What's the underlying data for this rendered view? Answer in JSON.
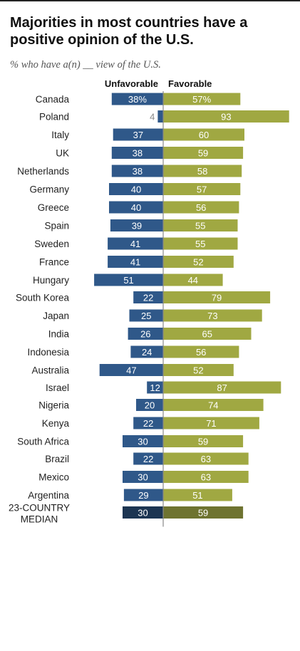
{
  "title": "Majorities in most countries have a positive opinion of the U.S.",
  "subtitle": "% who have a(n) __ view of the U.S.",
  "colors": {
    "unfavorable": "#2f5889",
    "favorable": "#a0a842",
    "median_unfavorable": "#1c3552",
    "median_favorable": "#6e7330"
  },
  "chart_data": {
    "type": "bar",
    "orientation": "horizontal-diverging",
    "series": [
      {
        "name": "Unfavorable",
        "values": [
          38,
          4,
          37,
          38,
          38,
          40,
          40,
          39,
          41,
          41,
          51,
          22,
          25,
          26,
          24,
          47,
          12,
          20,
          22,
          30,
          22,
          30,
          29,
          30
        ]
      },
      {
        "name": "Favorable",
        "values": [
          57,
          93,
          60,
          59,
          58,
          57,
          56,
          55,
          55,
          52,
          44,
          79,
          73,
          65,
          56,
          52,
          87,
          74,
          71,
          59,
          63,
          63,
          51,
          59
        ]
      }
    ],
    "categories": [
      "Canada",
      "Poland",
      "Italy",
      "UK",
      "Netherlands",
      "Germany",
      "Greece",
      "Spain",
      "Sweden",
      "France",
      "Hungary",
      "South Korea",
      "Japan",
      "India",
      "Indonesia",
      "Australia",
      "Israel",
      "Nigeria",
      "Kenya",
      "South Africa",
      "Brazil",
      "Mexico",
      "Argentina",
      "23-COUNTRY MEDIAN"
    ],
    "value_labels": {
      "unfavorable": [
        "38%",
        "4",
        "37",
        "38",
        "38",
        "40",
        "40",
        "39",
        "41",
        "41",
        "51",
        "22",
        "25",
        "26",
        "24",
        "47",
        "12",
        "20",
        "22",
        "30",
        "22",
        "30",
        "29",
        "30"
      ],
      "favorable": [
        "57%",
        "93",
        "60",
        "59",
        "58",
        "57",
        "56",
        "55",
        "55",
        "52",
        "44",
        "79",
        "73",
        "65",
        "56",
        "52",
        "87",
        "74",
        "71",
        "59",
        "63",
        "63",
        "51",
        "59"
      ]
    },
    "groups": [
      [
        0
      ],
      [
        1,
        2,
        3,
        4,
        5,
        6,
        7,
        8,
        9,
        10
      ],
      [
        11,
        12,
        13,
        14,
        15
      ],
      [
        16
      ],
      [
        17,
        18,
        19
      ],
      [
        20,
        21,
        22
      ],
      [
        23
      ]
    ],
    "median_index": 23,
    "legend": "top"
  }
}
